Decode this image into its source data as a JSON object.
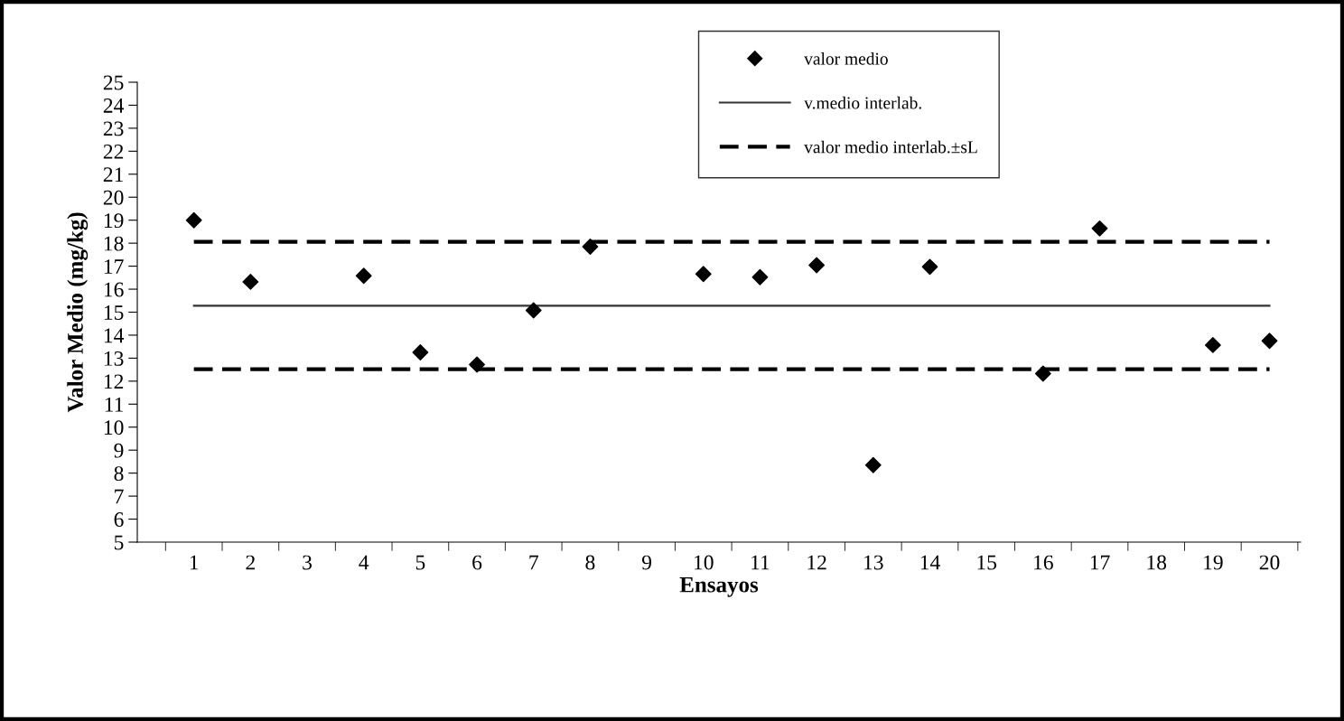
{
  "chart_data": {
    "type": "scatter",
    "xlabel": "Ensayos",
    "ylabel": "Valor Medio (mg/kg)",
    "categories": [
      "1",
      "2",
      "3",
      "4",
      "5",
      "6",
      "7",
      "8",
      "9",
      "10",
      "11",
      "12",
      "13",
      "14",
      "15",
      "16",
      "17",
      "18",
      "19",
      "20"
    ],
    "series": [
      {
        "name": "valor medio",
        "color": "#000000",
        "marker": "diamond",
        "values": [
          19.0,
          16.32,
          null,
          16.58,
          13.25,
          12.72,
          15.08,
          17.85,
          null,
          16.66,
          16.52,
          17.04,
          8.35,
          16.97,
          null,
          12.33,
          18.64,
          null,
          13.57,
          13.75
        ]
      },
      {
        "name": "v.medio interlab.",
        "type": "line",
        "color": "#333333",
        "line_style": "solid",
        "marker": "none",
        "values": [
          15.28,
          15.28,
          15.28,
          15.28,
          15.28,
          15.28,
          15.28,
          15.28,
          15.28,
          15.28,
          15.28,
          15.28,
          15.28,
          15.28,
          15.28,
          15.28,
          15.28,
          15.28,
          15.28,
          15.28
        ]
      },
      {
        "name": "valor medio interlab.±sL",
        "type": "line",
        "color": "#000000",
        "line_style": "dashed",
        "marker": "none",
        "values": [
          18.06,
          18.06,
          18.06,
          18.06,
          18.06,
          18.06,
          18.06,
          18.06,
          18.06,
          18.06,
          18.06,
          18.06,
          18.06,
          18.06,
          18.06,
          18.06,
          18.06,
          18.06,
          18.06,
          18.06
        ]
      },
      {
        "type": "line",
        "color": "#000000",
        "line_style": "dashed",
        "marker": "none",
        "values": [
          12.52,
          12.52,
          12.52,
          12.52,
          12.52,
          12.52,
          12.52,
          12.52,
          12.52,
          12.52,
          12.52,
          12.52,
          12.52,
          12.52,
          12.52,
          12.52,
          12.52,
          12.52,
          12.52,
          12.52
        ]
      }
    ],
    "ylim": [
      5,
      25
    ],
    "yticks": [
      5,
      6,
      7,
      8,
      9,
      10,
      11,
      12,
      13,
      14,
      15,
      16,
      17,
      18,
      19,
      20,
      21,
      22,
      23,
      24,
      25
    ],
    "grid": false,
    "legend": "top"
  }
}
